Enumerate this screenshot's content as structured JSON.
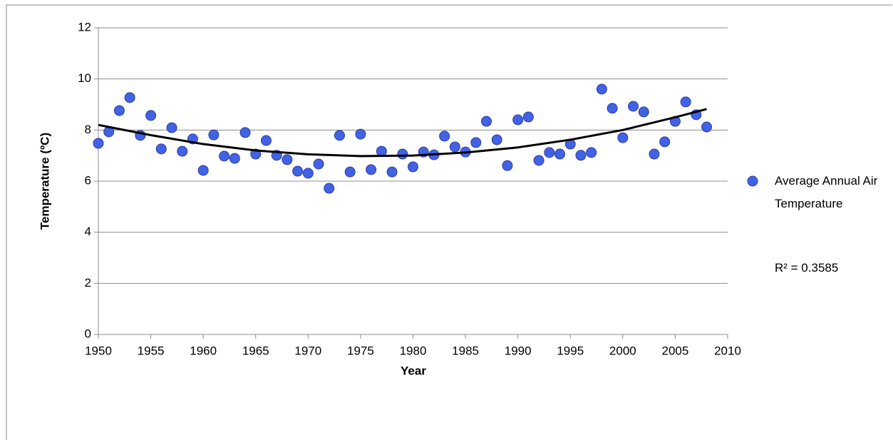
{
  "chart_data": {
    "type": "scatter",
    "xlabel": "Year",
    "ylabel": "Temperature (ºC)",
    "x": [
      1950,
      1951,
      1952,
      1953,
      1954,
      1955,
      1956,
      1957,
      1958,
      1959,
      1960,
      1961,
      1962,
      1963,
      1964,
      1965,
      1966,
      1967,
      1968,
      1969,
      1970,
      1971,
      1972,
      1973,
      1974,
      1975,
      1976,
      1977,
      1978,
      1979,
      1980,
      1981,
      1982,
      1983,
      1984,
      1985,
      1986,
      1987,
      1988,
      1989,
      1990,
      1991,
      1992,
      1993,
      1994,
      1995,
      1996,
      1997,
      1998,
      1999,
      2000,
      2001,
      2002,
      2003,
      2004,
      2005,
      2006,
      2007,
      2008
    ],
    "series": [
      {
        "name": "Average Annual Air Temperature",
        "color": "#4262e6",
        "values": [
          7.48,
          7.93,
          8.76,
          9.27,
          7.79,
          8.57,
          7.26,
          8.09,
          7.17,
          7.65,
          6.42,
          7.81,
          6.98,
          6.89,
          7.9,
          7.06,
          7.59,
          7.01,
          6.84,
          6.39,
          6.31,
          6.67,
          5.72,
          7.79,
          6.36,
          7.84,
          6.45,
          7.17,
          6.36,
          7.06,
          6.56,
          7.14,
          7.03,
          7.76,
          7.34,
          7.14,
          7.51,
          8.34,
          7.62,
          6.61,
          8.4,
          8.51,
          6.81,
          7.12,
          7.06,
          7.45,
          7.01,
          7.12,
          9.6,
          8.85,
          7.7,
          8.93,
          8.71,
          7.06,
          7.54,
          8.34,
          9.1,
          8.6,
          8.12
        ]
      }
    ],
    "trendline": {
      "label": "R² = 0.3585",
      "color": "#000000",
      "x": [
        1950,
        1955,
        1960,
        1965,
        1970,
        1975,
        1980,
        1985,
        1990,
        1995,
        2000,
        2005,
        2008
      ],
      "values": [
        8.2,
        7.8,
        7.45,
        7.2,
        7.05,
        6.98,
        7.0,
        7.12,
        7.32,
        7.62,
        8.0,
        8.5,
        8.82
      ]
    },
    "xlim": [
      1950,
      2010
    ],
    "xticks": [
      1950,
      1955,
      1960,
      1965,
      1970,
      1975,
      1980,
      1985,
      1990,
      1995,
      2000,
      2005,
      2010
    ],
    "ylim": [
      0,
      12
    ],
    "yticks": [
      0,
      2,
      4,
      6,
      8,
      10,
      12
    ],
    "grid": true
  }
}
